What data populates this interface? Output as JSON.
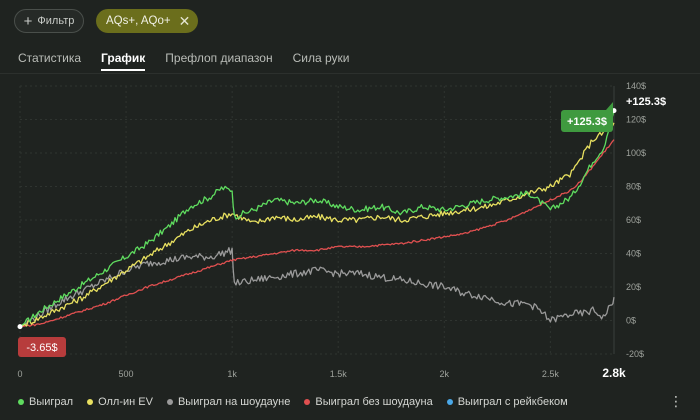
{
  "filter": {
    "label": "Фильтр"
  },
  "chip": {
    "label": "AQs+, AQo+"
  },
  "tabs": [
    {
      "label": "Статистика",
      "active": false
    },
    {
      "label": "График",
      "active": true
    },
    {
      "label": "Префлоп диапазон",
      "active": false
    },
    {
      "label": "Сила руки",
      "active": false
    }
  ],
  "chart_data": {
    "type": "line",
    "x_ticks": [
      "0",
      "500",
      "1k",
      "1.5k",
      "2k",
      "2.5k",
      "2.8k"
    ],
    "y_ticks": [
      "-20$",
      "0$",
      "20$",
      "40$",
      "60$",
      "80$",
      "100$",
      "120$",
      "140$"
    ],
    "xlim": [
      0,
      2800
    ],
    "ylim": [
      -20,
      140
    ],
    "start_label": "-3.65$",
    "end_label": "+125.3$",
    "end_badge": "+125.3$",
    "series": [
      {
        "name": "Выиграл",
        "color": "#5fdc5f",
        "x": [
          0,
          100,
          200,
          300,
          400,
          500,
          600,
          700,
          800,
          900,
          950,
          1000,
          1010,
          1100,
          1200,
          1300,
          1400,
          1500,
          1600,
          1700,
          1800,
          1900,
          2000,
          2100,
          2200,
          2300,
          2400,
          2500,
          2600,
          2650,
          2700,
          2750,
          2800
        ],
        "y": [
          -3.65,
          6,
          14,
          22,
          30,
          38,
          46,
          56,
          68,
          74,
          79,
          78,
          62,
          66,
          72,
          70,
          72,
          68,
          66,
          68,
          64,
          68,
          66,
          69,
          72,
          74,
          76,
          66,
          74,
          84,
          95,
          103,
          125.3
        ]
      },
      {
        "name": "Олл-ин EV",
        "color": "#e8e060",
        "x": [
          0,
          100,
          200,
          300,
          400,
          500,
          600,
          700,
          800,
          900,
          1000,
          1100,
          1200,
          1300,
          1400,
          1500,
          1600,
          1700,
          1800,
          1900,
          2000,
          2100,
          2200,
          2300,
          2400,
          2500,
          2600,
          2650,
          2700,
          2750,
          2800
        ],
        "y": [
          -3.65,
          2,
          8,
          14,
          22,
          30,
          38,
          46,
          54,
          60,
          64,
          58,
          62,
          60,
          62,
          60,
          60,
          62,
          60,
          62,
          64,
          66,
          68,
          72,
          76,
          80,
          88,
          98,
          108,
          112,
          118
        ]
      },
      {
        "name": "Выиграл на шоудауне",
        "color": "#9a9a9a",
        "x": [
          0,
          100,
          200,
          300,
          400,
          500,
          600,
          700,
          800,
          900,
          1000,
          1010,
          1100,
          1200,
          1300,
          1400,
          1500,
          1600,
          1700,
          1800,
          1900,
          2000,
          2100,
          2200,
          2300,
          2400,
          2450,
          2500,
          2550,
          2600,
          2650,
          2700,
          2750,
          2790,
          2800
        ],
        "y": [
          -3.65,
          4,
          12,
          18,
          24,
          30,
          34,
          36,
          38,
          38,
          42,
          22,
          24,
          26,
          28,
          30,
          28,
          28,
          26,
          24,
          22,
          20,
          16,
          14,
          10,
          10,
          6,
          0,
          2,
          4,
          4,
          6,
          2,
          10,
          14
        ]
      },
      {
        "name": "Выиграл без шоудауна",
        "color": "#e05050",
        "x": [
          0,
          100,
          200,
          300,
          400,
          500,
          600,
          700,
          800,
          900,
          1000,
          1100,
          1200,
          1300,
          1400,
          1500,
          1600,
          1700,
          1800,
          1900,
          2000,
          2100,
          2200,
          2300,
          2400,
          2500,
          2600,
          2650,
          2700,
          2750,
          2800
        ],
        "y": [
          -3.65,
          -2,
          2,
          6,
          10,
          15,
          20,
          24,
          28,
          32,
          36,
          38,
          40,
          42,
          42,
          44,
          44,
          45,
          46,
          48,
          50,
          52,
          56,
          60,
          66,
          72,
          78,
          84,
          92,
          100,
          108
        ]
      },
      {
        "name": "Выиграл с рейкбеком",
        "color": "#4aa8e8",
        "x": [
          0,
          2800
        ],
        "y": [
          -3.65,
          125.3
        ]
      }
    ]
  },
  "legend": [
    {
      "label": "Выиграл",
      "color": "#5fdc5f"
    },
    {
      "label": "Олл-ин EV",
      "color": "#e8e060"
    },
    {
      "label": "Выиграл на шоудауне",
      "color": "#9a9a9a"
    },
    {
      "label": "Выиграл без шоудауна",
      "color": "#e05050"
    },
    {
      "label": "Выиграл с рейкбеком",
      "color": "#4aa8e8"
    }
  ]
}
